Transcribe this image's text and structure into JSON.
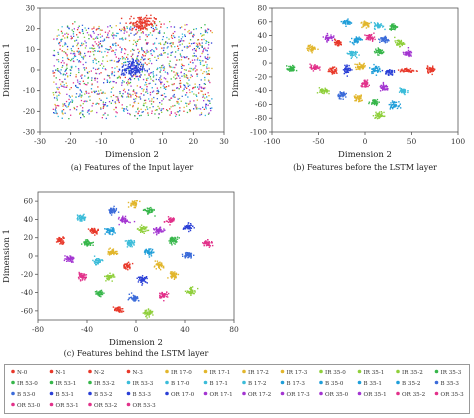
{
  "chart_data": [
    {
      "type": "scatter",
      "caption": "(a) Features of the Input layer",
      "xlabel": "Dimension 2",
      "ylabel": "Dimension 1",
      "xlim": [
        -30,
        30
      ],
      "ylim": [
        -30,
        30
      ],
      "xticks": [
        -30,
        -20,
        -10,
        0,
        10,
        20,
        30
      ],
      "yticks": [
        -30,
        -20,
        -10,
        0,
        10,
        20,
        30
      ],
      "cloud": {
        "center": [
          0,
          0
        ],
        "spread": [
          26,
          24
        ],
        "count": 1400
      },
      "clusters": [
        {
          "x": 3,
          "y": 23,
          "sx": 2.2,
          "sy": 1.8,
          "n": 130,
          "color": "#e8382a"
        },
        {
          "x": 0,
          "y": 1,
          "sx": 1.8,
          "sy": 2.2,
          "n": 140,
          "color": "#2a3fd6"
        }
      ]
    },
    {
      "type": "scatter",
      "caption": "(b) Features before the LSTM layer",
      "xlabel": "Dimension 2",
      "ylabel": "Dimension 1",
      "xlim": [
        -100,
        100
      ],
      "ylim": [
        -100,
        80
      ],
      "xticks": [
        -100,
        -50,
        0,
        50,
        100
      ],
      "yticks": [
        -100,
        -80,
        -60,
        -40,
        -20,
        0,
        20,
        40,
        60,
        80
      ],
      "clusters": [
        {
          "x": -20,
          "y": 60,
          "color": "#1f9ed9"
        },
        {
          "x": 0,
          "y": 58,
          "color": "#e2b62c"
        },
        {
          "x": 14,
          "y": 55,
          "color": "#3bbcd9"
        },
        {
          "x": 30,
          "y": 54,
          "color": "#36b64a"
        },
        {
          "x": -40,
          "y": 38,
          "color": "#a335d1"
        },
        {
          "x": -30,
          "y": 30,
          "color": "#e8382a"
        },
        {
          "x": -10,
          "y": 35,
          "color": "#1f9ed9"
        },
        {
          "x": 5,
          "y": 38,
          "color": "#e2318a"
        },
        {
          "x": 20,
          "y": 35,
          "color": "#3b6bd9"
        },
        {
          "x": 36,
          "y": 30,
          "color": "#8fcf3b"
        },
        {
          "x": -58,
          "y": 22,
          "color": "#e2b62c"
        },
        {
          "x": -15,
          "y": 15,
          "color": "#3bbcd9"
        },
        {
          "x": 15,
          "y": 18,
          "color": "#36b64a"
        },
        {
          "x": 45,
          "y": 15,
          "color": "#a335d1"
        },
        {
          "x": -80,
          "y": -8,
          "color": "#36b64a"
        },
        {
          "x": -55,
          "y": -5,
          "color": "#e2318a"
        },
        {
          "x": -35,
          "y": -10,
          "color": "#e8382a"
        },
        {
          "x": -20,
          "y": -8,
          "color": "#2a3fd6",
          "w": 5,
          "h": 8
        },
        {
          "x": -5,
          "y": -4,
          "color": "#e2b62c",
          "w": 8,
          "h": 6
        },
        {
          "x": 10,
          "y": -8,
          "color": "#1f9ed9",
          "w": 6,
          "h": 7
        },
        {
          "x": 25,
          "y": -12,
          "color": "#2a3fd6"
        },
        {
          "x": 45,
          "y": -10,
          "color": "#e8382a",
          "w": 10,
          "h": 4
        },
        {
          "x": 70,
          "y": -8,
          "color": "#e8382a"
        },
        {
          "x": -45,
          "y": -40,
          "color": "#8fcf3b"
        },
        {
          "x": -25,
          "y": -45,
          "color": "#3b6bd9"
        },
        {
          "x": 0,
          "y": -30,
          "color": "#e2318a"
        },
        {
          "x": 20,
          "y": -35,
          "color": "#a335d1"
        },
        {
          "x": 40,
          "y": -40,
          "color": "#3bbcd9"
        },
        {
          "x": -8,
          "y": -50,
          "color": "#e2b62c"
        },
        {
          "x": 10,
          "y": -55,
          "color": "#36b64a"
        },
        {
          "x": 30,
          "y": -60,
          "color": "#1f9ed9"
        },
        {
          "x": 15,
          "y": -75,
          "color": "#8fcf3b"
        }
      ]
    },
    {
      "type": "scatter",
      "caption": "(c) Features behind the LSTM layer",
      "xlabel": "Dimension 2",
      "ylabel": "Dimension 1",
      "xlim": [
        -80,
        80
      ],
      "ylim": [
        -70,
        70
      ],
      "xticks": [
        -80,
        -40,
        0,
        40,
        80
      ],
      "yticks": [
        -60,
        -40,
        -20,
        0,
        20,
        40,
        60
      ],
      "clusters": [
        {
          "x": -2,
          "y": 58,
          "color": "#e2b62c"
        },
        {
          "x": -20,
          "y": 50,
          "color": "#3b6bd9"
        },
        {
          "x": 10,
          "y": 50,
          "color": "#36b64a"
        },
        {
          "x": -45,
          "y": 42,
          "color": "#3bbcd9"
        },
        {
          "x": -10,
          "y": 40,
          "color": "#a335d1"
        },
        {
          "x": 28,
          "y": 40,
          "color": "#e2318a"
        },
        {
          "x": 42,
          "y": 32,
          "color": "#2a3fd6"
        },
        {
          "x": -35,
          "y": 28,
          "color": "#e8382a"
        },
        {
          "x": -22,
          "y": 28,
          "color": "#1f9ed9"
        },
        {
          "x": 5,
          "y": 30,
          "color": "#8fcf3b"
        },
        {
          "x": 18,
          "y": 28,
          "color": "#a335d1"
        },
        {
          "x": -62,
          "y": 18,
          "color": "#e8382a"
        },
        {
          "x": -40,
          "y": 15,
          "color": "#36b64a"
        },
        {
          "x": -5,
          "y": 15,
          "color": "#3bbcd9"
        },
        {
          "x": 30,
          "y": 18,
          "color": "#36b64a"
        },
        {
          "x": 58,
          "y": 15,
          "color": "#e2318a"
        },
        {
          "x": -20,
          "y": 5,
          "color": "#e2b62c"
        },
        {
          "x": 10,
          "y": 5,
          "color": "#1f9ed9"
        },
        {
          "x": 42,
          "y": 2,
          "color": "#3b6bd9"
        },
        {
          "x": -55,
          "y": -2,
          "color": "#a335d1"
        },
        {
          "x": -32,
          "y": -5,
          "color": "#3bbcd9"
        },
        {
          "x": -8,
          "y": -10,
          "color": "#e8382a"
        },
        {
          "x": 18,
          "y": -10,
          "color": "#e2b62c"
        },
        {
          "x": -45,
          "y": -22,
          "color": "#e2318a"
        },
        {
          "x": -22,
          "y": -22,
          "color": "#8fcf3b"
        },
        {
          "x": 5,
          "y": -25,
          "color": "#2a3fd6"
        },
        {
          "x": 30,
          "y": -20,
          "color": "#e2b62c"
        },
        {
          "x": -30,
          "y": -40,
          "color": "#36b64a"
        },
        {
          "x": -2,
          "y": -45,
          "color": "#3b6bd9"
        },
        {
          "x": 22,
          "y": -42,
          "color": "#e2318a"
        },
        {
          "x": 45,
          "y": -38,
          "color": "#8fcf3b"
        },
        {
          "x": -15,
          "y": -58,
          "color": "#e8382a"
        },
        {
          "x": 10,
          "y": -62,
          "color": "#8fcf3b"
        }
      ]
    }
  ],
  "legend": [
    {
      "label": "N-0",
      "color": "#e8382a"
    },
    {
      "label": "N-1",
      "color": "#e8382a"
    },
    {
      "label": "N-2",
      "color": "#e8382a"
    },
    {
      "label": "N-3",
      "color": "#e8382a"
    },
    {
      "label": "IR 17-0",
      "color": "#e2b62c"
    },
    {
      "label": "IR 17-1",
      "color": "#e2b62c"
    },
    {
      "label": "IR 17-2",
      "color": "#e2b62c"
    },
    {
      "label": "IR 17-3",
      "color": "#e2b62c"
    },
    {
      "label": "IR 35-0",
      "color": "#8fcf3b"
    },
    {
      "label": "IR 35-1",
      "color": "#8fcf3b"
    },
    {
      "label": "IR 35-2",
      "color": "#8fcf3b"
    },
    {
      "label": "IR 35-3",
      "color": "#36b64a"
    },
    {
      "label": "IR 53-0",
      "color": "#36b64a"
    },
    {
      "label": "IR 53-1",
      "color": "#36b64a"
    },
    {
      "label": "IR 53-2",
      "color": "#36b64a"
    },
    {
      "label": "IR 53-3",
      "color": "#3bbcd9"
    },
    {
      "label": "B 17-0",
      "color": "#3bbcd9"
    },
    {
      "label": "B 17-1",
      "color": "#3bbcd9"
    },
    {
      "label": "B 17-2",
      "color": "#3bbcd9"
    },
    {
      "label": "B 17-3",
      "color": "#1f9ed9"
    },
    {
      "label": "B 35-0",
      "color": "#1f9ed9"
    },
    {
      "label": "B 35-1",
      "color": "#1f9ed9"
    },
    {
      "label": "B 35-2",
      "color": "#1f9ed9"
    },
    {
      "label": "B 35-3",
      "color": "#3b6bd9"
    },
    {
      "label": "B 53-0",
      "color": "#3b6bd9"
    },
    {
      "label": "B 53-1",
      "color": "#2a3fd6"
    },
    {
      "label": "B 53-2",
      "color": "#2a3fd6"
    },
    {
      "label": "B 53-3",
      "color": "#2a3fd6"
    },
    {
      "label": "OR 17-0",
      "color": "#2a3fd6"
    },
    {
      "label": "OR 17-1",
      "color": "#a335d1"
    },
    {
      "label": "OR 17-2",
      "color": "#a335d1"
    },
    {
      "label": "OR 17-3",
      "color": "#a335d1"
    },
    {
      "label": "OR 35-0",
      "color": "#a335d1"
    },
    {
      "label": "OR 35-1",
      "color": "#a335d1"
    },
    {
      "label": "OR 35-2",
      "color": "#e2318a"
    },
    {
      "label": "OR 35-3",
      "color": "#e2318a"
    },
    {
      "label": "OR 53-0",
      "color": "#e2318a"
    },
    {
      "label": "OR 53-1",
      "color": "#e2318a"
    },
    {
      "label": "OR 53-2",
      "color": "#e2318a"
    },
    {
      "label": "OR 53-3",
      "color": "#e2318a"
    }
  ]
}
